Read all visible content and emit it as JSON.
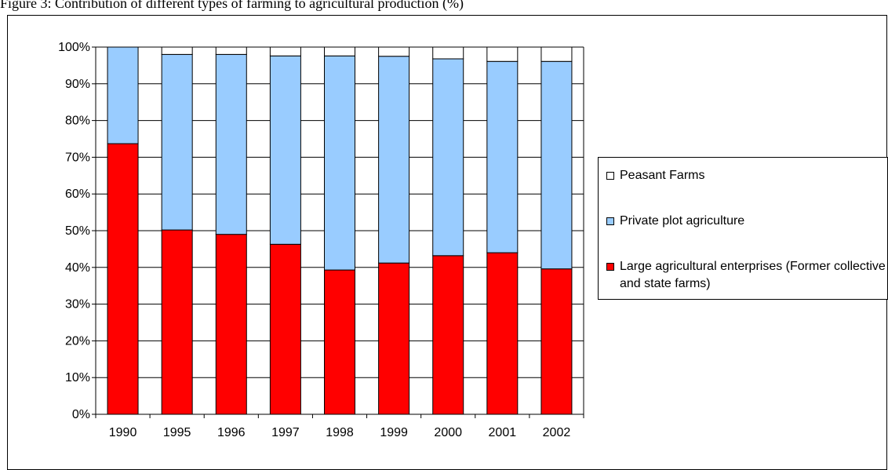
{
  "figure_title": "Figure 3: Contribution of different types of farming to agricultural production (%)",
  "chart_data": {
    "type": "bar",
    "stacked": true,
    "title": "",
    "xlabel": "",
    "ylabel": "",
    "categories": [
      "1990",
      "1995",
      "1996",
      "1997",
      "1998",
      "1999",
      "2000",
      "2001",
      "2002"
    ],
    "y_ticks": [
      "0%",
      "10%",
      "20%",
      "30%",
      "40%",
      "50%",
      "60%",
      "70%",
      "80%",
      "90%",
      "100%"
    ],
    "ylim": [
      0,
      100
    ],
    "grid": true,
    "legend_position": "right",
    "series": [
      {
        "name": "Large agricultural enterprises (Former collective and state farms)",
        "color": "#ff0000",
        "values": [
          73.7,
          50.2,
          49.0,
          46.3,
          39.3,
          41.2,
          43.2,
          44.0,
          39.6
        ]
      },
      {
        "name": "Private plot agriculture",
        "color": "#99ccff",
        "values": [
          26.3,
          47.8,
          49.0,
          51.3,
          58.3,
          56.3,
          53.6,
          52.1,
          56.5
        ]
      },
      {
        "name": "Peasant Farms",
        "color": "#ffffff",
        "values": [
          0.0,
          2.0,
          2.0,
          2.4,
          2.4,
          2.5,
          3.2,
          3.9,
          3.9
        ]
      }
    ]
  }
}
